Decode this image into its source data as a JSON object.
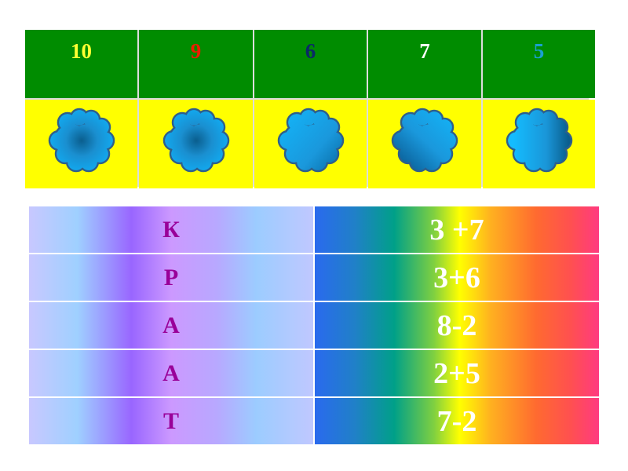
{
  "numbers": [
    {
      "value": "10",
      "color": "#ffff33"
    },
    {
      "value": "9",
      "color": "#ee1c00"
    },
    {
      "value": "6",
      "color": "#0a2a66"
    },
    {
      "value": "7",
      "color": "#ffffff"
    },
    {
      "value": "5",
      "color": "#1aa0d0"
    }
  ],
  "rows": [
    {
      "letter": "К",
      "expression": "3 +7"
    },
    {
      "letter": "Р",
      "expression": "3+6"
    },
    {
      "letter": "А",
      "expression": "8-2"
    },
    {
      "letter": "А",
      "expression": "2+5"
    },
    {
      "letter": "Т",
      "expression": "7-2"
    }
  ]
}
